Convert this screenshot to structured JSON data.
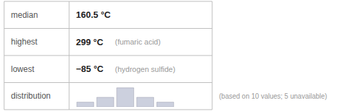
{
  "chart_data": {
    "type": "bar",
    "categories": [
      null,
      null,
      null,
      null,
      null
    ],
    "values": [
      1,
      2,
      4,
      2,
      1
    ],
    "color": "#ccd0de",
    "ylim": [
      0,
      4.5
    ],
    "tick_labels": false,
    "grid": false,
    "table": {
      "row_labels": [
        "median",
        "highest",
        "lowest",
        "distribution"
      ],
      "row_values": [
        [
          "160.5 °C"
        ],
        [
          "299 °C",
          "(fumaric acid)"
        ],
        [
          "−85 °C",
          "(hydrogen sulfide)"
        ],
        []
      ]
    },
    "footer": "(based on 10 values; 5 unavailable)"
  }
}
